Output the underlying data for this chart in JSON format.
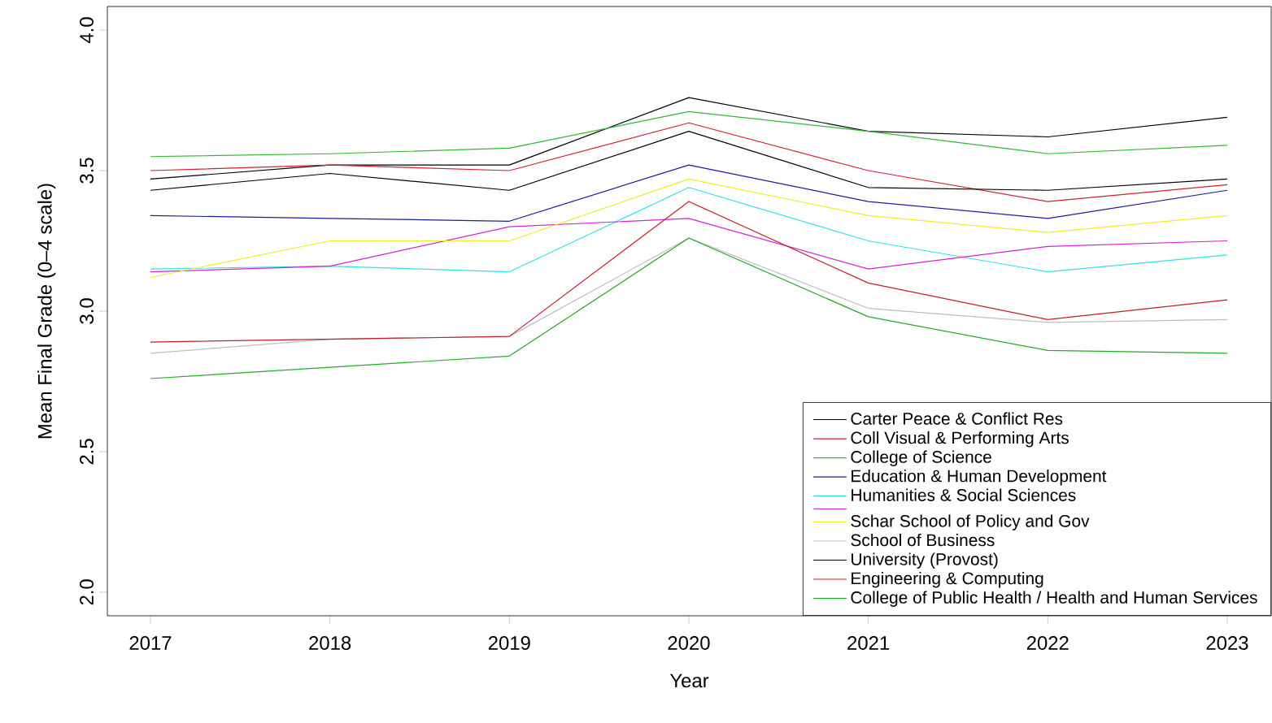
{
  "chart_data": {
    "type": "line",
    "xlabel": "Year",
    "ylabel": "Mean Final Grade (0–4 scale)",
    "x": [
      2017,
      2018,
      2019,
      2020,
      2021,
      2022,
      2023
    ],
    "xlim": [
      2016.76,
      2023.245
    ],
    "ylim": [
      1.916,
      4.084
    ],
    "xticks": [
      2017,
      2018,
      2019,
      2020,
      2021,
      2022,
      2023
    ],
    "yticks": [
      {
        "value": 2,
        "label": "2.0"
      },
      {
        "value": 2.5,
        "label": "2.5"
      },
      {
        "value": 3,
        "label": "3.0"
      },
      {
        "value": 3.5,
        "label": "3.5"
      },
      {
        "value": 4,
        "label": "4.0"
      }
    ],
    "legend": "bottom right",
    "series": [
      {
        "name": "Carter Peace & Conflict Res",
        "color": "#000000",
        "values": [
          3.47,
          3.52,
          3.52,
          3.76,
          3.64,
          3.62,
          3.69
        ]
      },
      {
        "name": "Coll Visual & Performing Arts",
        "color": "#d42030",
        "values": [
          3.5,
          3.52,
          3.5,
          3.67,
          3.5,
          3.39,
          3.45
        ]
      },
      {
        "name": "College of Science",
        "color": "#30b830",
        "values": [
          3.55,
          3.56,
          3.58,
          3.71,
          3.64,
          3.56,
          3.59
        ]
      },
      {
        "name": "Education & Human Development",
        "color": "#1c1c9c",
        "values": [
          3.34,
          3.33,
          3.32,
          3.52,
          3.39,
          3.33,
          3.43
        ]
      },
      {
        "name": "Humanities & Social Sciences",
        "color": "#30e0e8",
        "values": [
          3.15,
          3.16,
          3.14,
          3.44,
          3.25,
          3.14,
          3.2
        ]
      },
      {
        "color": "#d820d8",
        "values": [
          3.14,
          3.16,
          3.3,
          3.33,
          3.15,
          3.23,
          3.25
        ]
      },
      {
        "name": "Schar School of Policy and Gov",
        "color": "#f2ec20",
        "values": [
          3.12,
          3.25,
          3.25,
          3.47,
          3.34,
          3.28,
          3.34
        ]
      },
      {
        "name": "School of Business",
        "color": "#bebebe",
        "values": [
          2.85,
          2.9,
          2.91,
          3.26,
          3.01,
          2.96,
          2.97
        ]
      },
      {
        "name": "University (Provost)",
        "color": "#000000",
        "values": [
          3.43,
          3.49,
          3.43,
          3.64,
          3.44,
          3.43,
          3.47
        ]
      },
      {
        "name": "Engineering & Computing",
        "color": "#c41c28",
        "values": [
          2.89,
          2.9,
          2.91,
          3.39,
          3.1,
          2.97,
          3.04
        ]
      },
      {
        "name": "College of Public Health / Health and Human Services",
        "color": "#22aa22",
        "values": [
          2.76,
          2.8,
          2.84,
          3.26,
          2.98,
          2.86,
          2.85
        ]
      }
    ]
  }
}
